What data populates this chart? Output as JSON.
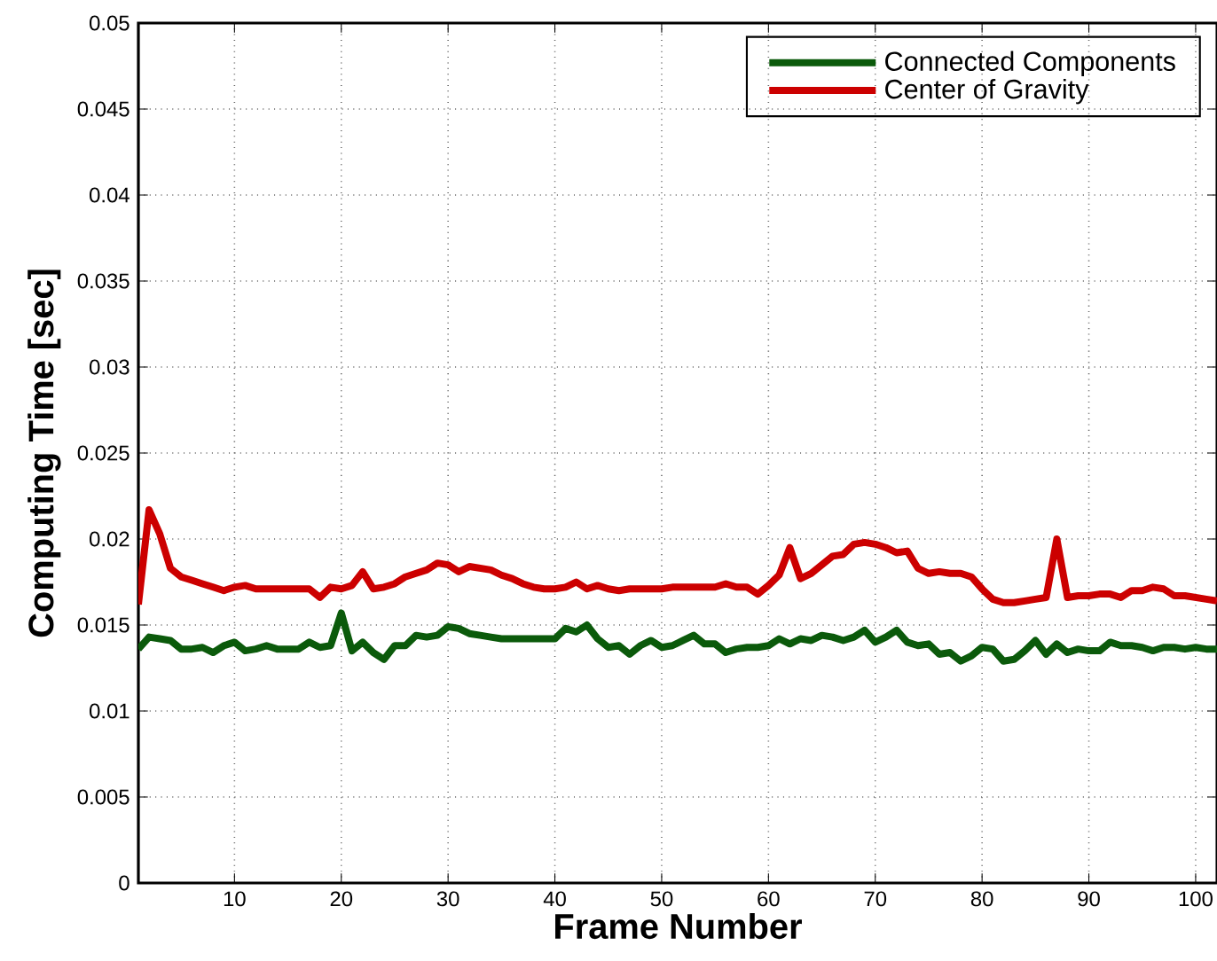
{
  "chart_data": {
    "type": "line",
    "xlabel": "Frame Number",
    "ylabel": "Computing Time [sec]",
    "x": [
      1,
      2,
      3,
      4,
      5,
      6,
      7,
      8,
      9,
      10,
      11,
      12,
      13,
      14,
      15,
      16,
      17,
      18,
      19,
      20,
      21,
      22,
      23,
      24,
      25,
      26,
      27,
      28,
      29,
      30,
      31,
      32,
      33,
      34,
      35,
      36,
      37,
      38,
      39,
      40,
      41,
      42,
      43,
      44,
      45,
      46,
      47,
      48,
      49,
      50,
      51,
      52,
      53,
      54,
      55,
      56,
      57,
      58,
      59,
      60,
      61,
      62,
      63,
      64,
      65,
      66,
      67,
      68,
      69,
      70,
      71,
      72,
      73,
      74,
      75,
      76,
      77,
      78,
      79,
      80,
      81,
      82,
      83,
      84,
      85,
      86,
      87,
      88,
      89,
      90,
      91,
      92,
      93,
      94,
      95,
      96,
      97,
      98,
      99,
      100,
      101,
      102
    ],
    "series": [
      {
        "name": "Connected Components",
        "color": "#0b5a0b",
        "values": [
          0.0136,
          0.0143,
          0.0142,
          0.0141,
          0.0136,
          0.0136,
          0.0137,
          0.0134,
          0.0138,
          0.014,
          0.0135,
          0.0136,
          0.0138,
          0.0136,
          0.0136,
          0.0136,
          0.014,
          0.0137,
          0.0138,
          0.0157,
          0.0135,
          0.014,
          0.0134,
          0.013,
          0.0138,
          0.0138,
          0.0144,
          0.0143,
          0.0144,
          0.0149,
          0.0148,
          0.0145,
          0.0144,
          0.0143,
          0.0142,
          0.0142,
          0.0142,
          0.0142,
          0.0142,
          0.0142,
          0.0148,
          0.0146,
          0.015,
          0.0142,
          0.0137,
          0.0138,
          0.0133,
          0.0138,
          0.0141,
          0.0137,
          0.0138,
          0.0141,
          0.0144,
          0.0139,
          0.0139,
          0.0134,
          0.0136,
          0.0137,
          0.0137,
          0.0138,
          0.0142,
          0.0139,
          0.0142,
          0.0141,
          0.0144,
          0.0143,
          0.0141,
          0.0143,
          0.0147,
          0.014,
          0.0143,
          0.0147,
          0.014,
          0.0138,
          0.0139,
          0.0133,
          0.0134,
          0.0129,
          0.0132,
          0.0137,
          0.0136,
          0.0129,
          0.013,
          0.0135,
          0.0141,
          0.0133,
          0.0139,
          0.0134,
          0.0136,
          0.0135,
          0.0135,
          0.014,
          0.0138,
          0.0138,
          0.0137,
          0.0135,
          0.0137,
          0.0137,
          0.0136,
          0.0137,
          0.0136,
          0.0136
        ]
      },
      {
        "name": "Center of Gravity",
        "color": "#cc0000",
        "values": [
          0.0162,
          0.0217,
          0.0203,
          0.0183,
          0.0178,
          0.0176,
          0.0174,
          0.0172,
          0.017,
          0.0172,
          0.0173,
          0.0171,
          0.0171,
          0.0171,
          0.0171,
          0.0171,
          0.0171,
          0.0166,
          0.0172,
          0.0171,
          0.0173,
          0.0181,
          0.0171,
          0.0172,
          0.0174,
          0.0178,
          0.018,
          0.0182,
          0.0186,
          0.0185,
          0.0181,
          0.0184,
          0.0183,
          0.0182,
          0.0179,
          0.0177,
          0.0174,
          0.0172,
          0.0171,
          0.0171,
          0.0172,
          0.0175,
          0.0171,
          0.0173,
          0.0171,
          0.017,
          0.0171,
          0.0171,
          0.0171,
          0.0171,
          0.0172,
          0.0172,
          0.0172,
          0.0172,
          0.0172,
          0.0174,
          0.0172,
          0.0172,
          0.0168,
          0.0173,
          0.0179,
          0.0195,
          0.0177,
          0.018,
          0.0185,
          0.019,
          0.0191,
          0.0197,
          0.0198,
          0.0197,
          0.0195,
          0.0192,
          0.0193,
          0.0183,
          0.018,
          0.0181,
          0.018,
          0.018,
          0.0178,
          0.0171,
          0.0165,
          0.0163,
          0.0163,
          0.0164,
          0.0165,
          0.0166,
          0.02,
          0.0166,
          0.0167,
          0.0167,
          0.0168,
          0.0168,
          0.0166,
          0.017,
          0.017,
          0.0172,
          0.0171,
          0.0167,
          0.0167,
          0.0166,
          0.0165,
          0.0164
        ]
      }
    ],
    "xlim": [
      1,
      102
    ],
    "xticks": [
      10,
      20,
      30,
      40,
      50,
      60,
      70,
      80,
      90,
      100
    ],
    "ylim": [
      0,
      0.05
    ],
    "yticks": [
      0,
      0.005,
      0.01,
      0.015,
      0.02,
      0.025,
      0.03,
      0.035,
      0.04,
      0.045,
      0.05
    ],
    "grid": true,
    "legend": "top right",
    "marker": "none",
    "line_style": "solid"
  }
}
